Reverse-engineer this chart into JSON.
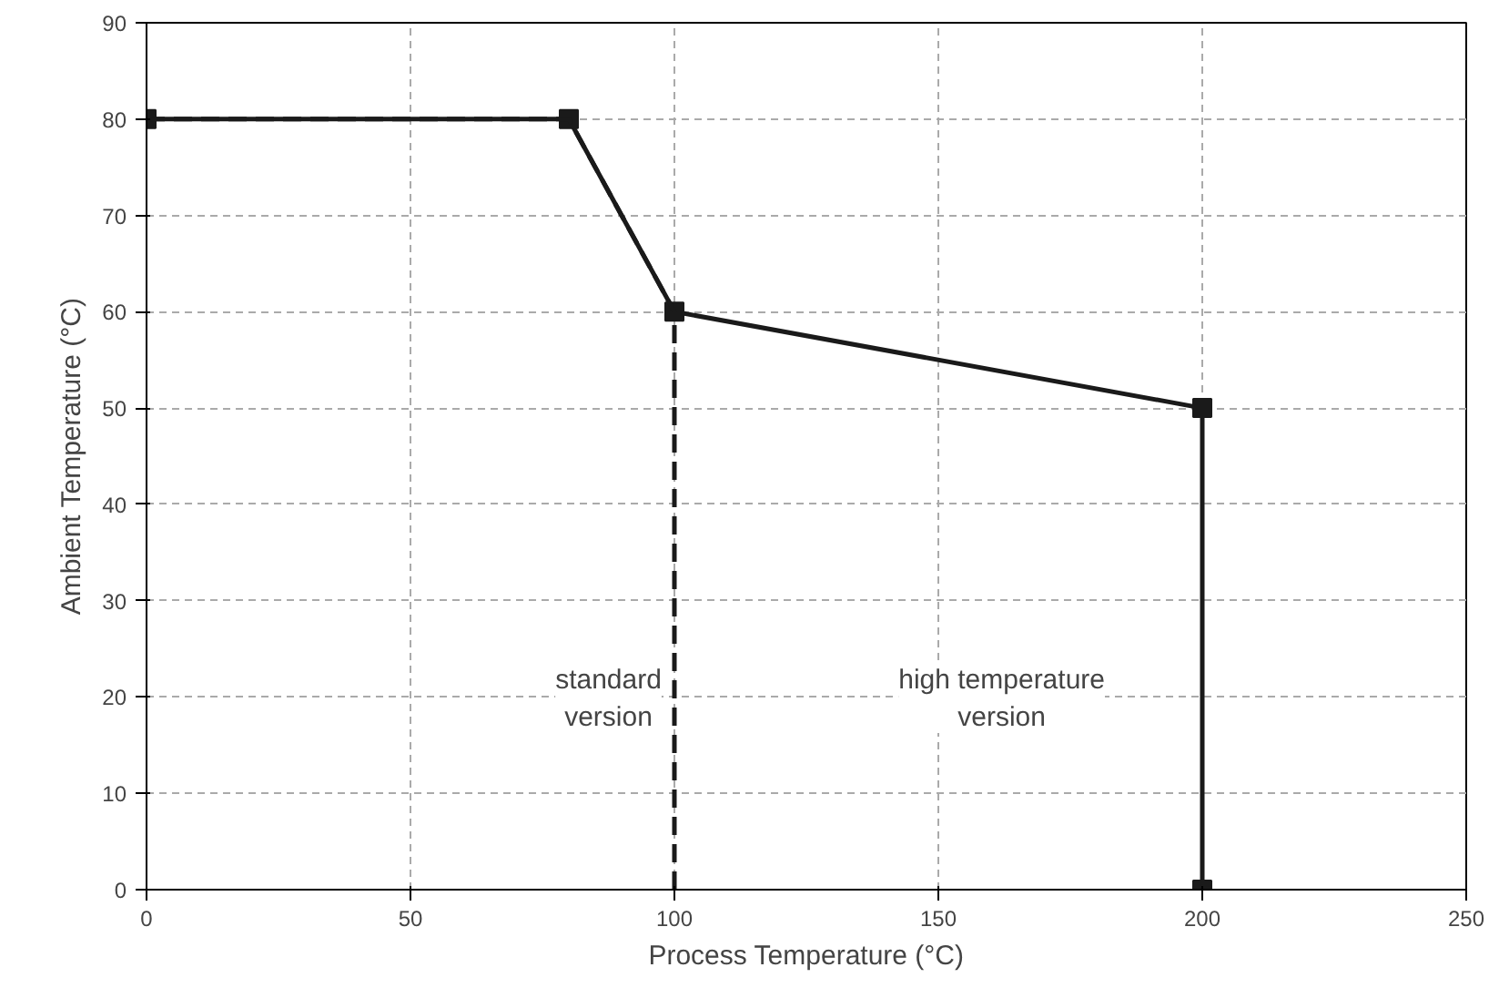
{
  "chart_data": {
    "type": "line",
    "xlabel": "Process Temperature (°C)",
    "ylabel": "Ambient Temperature (°C)",
    "series": [
      {
        "color": "#1a1a1a",
        "line_style": "solid",
        "marker": "square",
        "x": [
          0,
          80,
          100,
          200,
          200
        ],
        "values": [
          80,
          80,
          60,
          50,
          0
        ]
      },
      {
        "color": "#1a1a1a",
        "line_style": "dashed",
        "marker": "none",
        "x": [
          0,
          80,
          100,
          100
        ],
        "values": [
          80,
          80,
          60,
          0
        ]
      }
    ],
    "annotations": [
      "standard\nversion",
      "high temperature\nversion"
    ],
    "xlim": [
      0,
      250
    ],
    "xticks": [
      0,
      50,
      100,
      150,
      200,
      250
    ],
    "ylim": [
      0,
      90
    ],
    "yticks": [
      0,
      10,
      20,
      30,
      40,
      50,
      60,
      70,
      80,
      90
    ],
    "grid": true
  }
}
